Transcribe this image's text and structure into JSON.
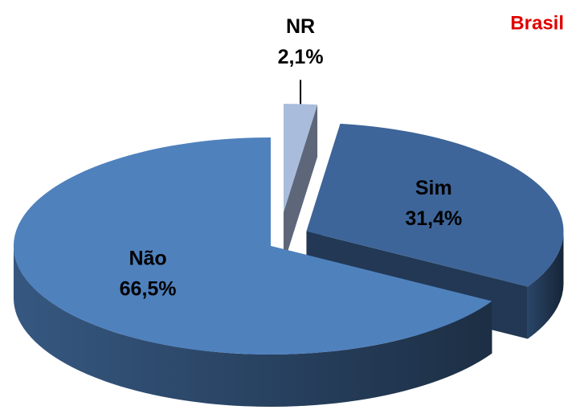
{
  "chart_data": {
    "type": "pie3d",
    "title": "Brasil",
    "title_color": "#e00000",
    "categories": [
      "NR",
      "Sim",
      "Não"
    ],
    "values": [
      2.1,
      31.4,
      66.5
    ],
    "value_labels": [
      "2,1%",
      "31,4%",
      "66,5%"
    ],
    "colors": [
      "#a9bcdc",
      "#3d6599",
      "#4f81bd"
    ]
  }
}
